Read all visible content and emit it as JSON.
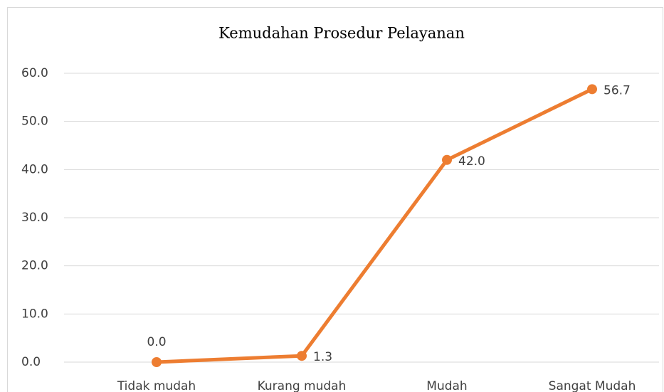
{
  "chart_data": {
    "type": "line",
    "title": "Kemudahan Prosedur Pelayanan",
    "categories": [
      "Tidak mudah",
      "Kurang mudah",
      "Mudah",
      "Sangat Mudah"
    ],
    "series": [
      {
        "name": "Kemudahan Prosedur Pelayanan",
        "color": "#ed7d31",
        "values": [
          0,
          1.3,
          42,
          56.7
        ],
        "value_labels": [
          "0.0",
          "1.3",
          "42.0",
          "56.7"
        ]
      }
    ],
    "ylim": [
      0,
      60
    ],
    "yticks": [
      {
        "value": 0,
        "label": "0.0"
      },
      {
        "value": 10,
        "label": "10.0"
      },
      {
        "value": 20,
        "label": "20.0"
      },
      {
        "value": 30,
        "label": "30.0"
      },
      {
        "value": 40,
        "label": "40.0"
      },
      {
        "value": 50,
        "label": "50.0"
      },
      {
        "value": 60,
        "label": "60.0"
      }
    ],
    "grid": true
  }
}
